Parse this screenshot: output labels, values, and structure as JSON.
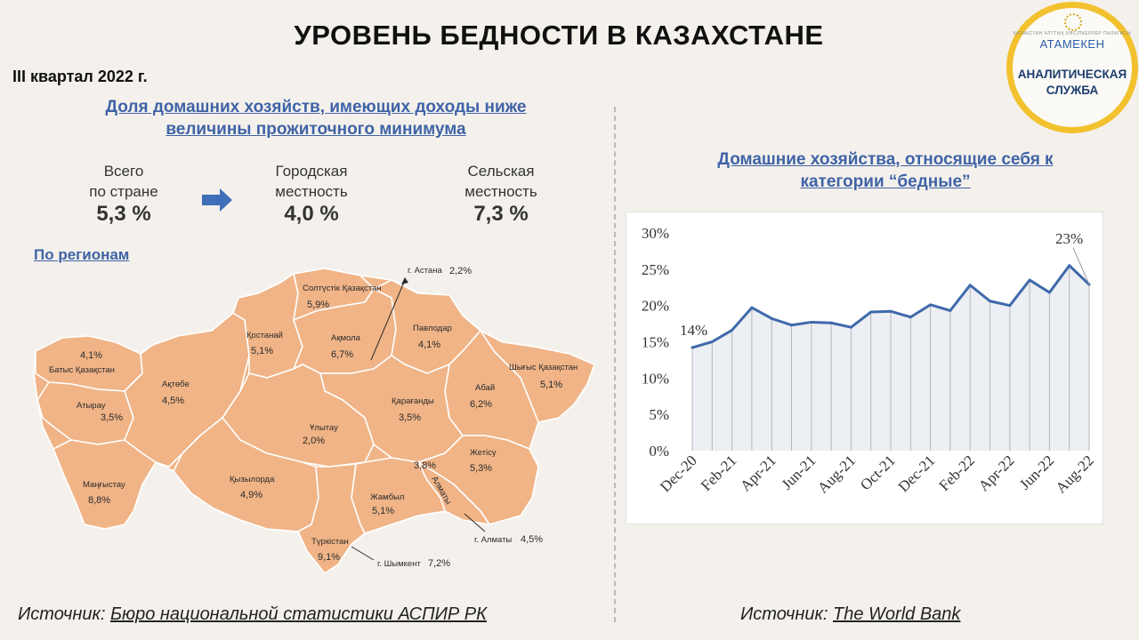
{
  "header": {
    "title": "УРОВЕНЬ БЕДНОСТИ В КАЗАХСТАНЕ",
    "period": "III квартал 2022 г."
  },
  "logo": {
    "small_text": "ҚАЗАҚСТАН ҰЛТТЫҚ КӘСІПКЕРЛЕР ПАЛАТАСЫ",
    "brand": "АТАМЕКЕН",
    "service_line1": "АНАЛИТИЧЕСКАЯ",
    "service_line2": "СЛУЖБА"
  },
  "left": {
    "heading_line1": "Доля домашних хозяйств, имеющих доходы ниже",
    "heading_line2": "величины прожиточного минимума",
    "stats": [
      {
        "line1": "Всего",
        "line2": "по стране",
        "value": "5,3 %"
      },
      {
        "line1": "Городская",
        "line2": "местность",
        "value": "4,0 %"
      },
      {
        "line1": "Сельская",
        "line2": "местность",
        "value": "7,3 %"
      }
    ],
    "by_regions": "По регионам",
    "regions": [
      {
        "name": "Солтүстік Қазақстан",
        "value": "5,9%"
      },
      {
        "name": "г. Астана",
        "value": "2,2%"
      },
      {
        "name": "Павлодар",
        "value": "4,1%"
      },
      {
        "name": "Ақмола",
        "value": "6,7%"
      },
      {
        "name": "Қостанай",
        "value": "5,1%"
      },
      {
        "name": "Батыс Қазақстан",
        "value": "4,1%"
      },
      {
        "name": "Ақтөбе",
        "value": "4,5%"
      },
      {
        "name": "Атырау",
        "value": "3,5%"
      },
      {
        "name": "Шығыс Қазақстан",
        "value": "5,1%"
      },
      {
        "name": "Абай",
        "value": "6,2%"
      },
      {
        "name": "Қарағанды",
        "value": "3,5%"
      },
      {
        "name": "Ұлытау",
        "value": "2,0%"
      },
      {
        "name": "Қызылорда",
        "value": "4,9%"
      },
      {
        "name": "Маңғыстау",
        "value": "8,8%"
      },
      {
        "name": "Жетісу",
        "value": "5,3%"
      },
      {
        "name": "Алматы",
        "value": "3,8%"
      },
      {
        "name": "Жамбыл",
        "value": "5,1%"
      },
      {
        "name": "Түркістан",
        "value": "9,1%"
      },
      {
        "name": "г. Алматы",
        "value": "4,5%"
      },
      {
        "name": "г. Шымкент",
        "value": "7,2%"
      }
    ],
    "source_label": "Источник:",
    "source_name": "Бюро национальной статистики АСПИР РК"
  },
  "right": {
    "heading_line1": "Домашние хозяйства, относящие себя к",
    "heading_line2": "категории “бедные”",
    "source_label": "Источник:",
    "source_name": "The World Bank"
  },
  "chart_data": {
    "type": "line",
    "x": [
      "Dec-20",
      "Jan-21",
      "Feb-21",
      "Mar-21",
      "Apr-21",
      "May-21",
      "Jun-21",
      "Jul-21",
      "Aug-21",
      "Sep-21",
      "Oct-21",
      "Nov-21",
      "Dec-21",
      "Jan-22",
      "Feb-22",
      "Mar-22",
      "Apr-22",
      "May-22",
      "Jun-22",
      "Jul-22",
      "Aug-22"
    ],
    "x_tick_labels": [
      "Dec-20",
      "Feb-21",
      "Apr-21",
      "Jun-21",
      "Aug-21",
      "Oct-21",
      "Dec-21",
      "Feb-22",
      "Apr-22",
      "Jun-22",
      "Aug-22"
    ],
    "series": [
      {
        "values": [
          14.2,
          15.0,
          16.6,
          19.7,
          18.2,
          17.3,
          17.7,
          17.6,
          17.0,
          19.1,
          19.2,
          18.4,
          20.1,
          19.3,
          22.8,
          20.6,
          20.0,
          23.5,
          21.8,
          25.5,
          22.9
        ],
        "color": "#3f69ab"
      }
    ],
    "y_ticks": [
      "0%",
      "5%",
      "10%",
      "15%",
      "20%",
      "25%",
      "30%"
    ],
    "ylim": [
      0,
      30
    ],
    "annotations": [
      "14%",
      "23%"
    ],
    "grid": "vertical",
    "area_fill": true
  }
}
